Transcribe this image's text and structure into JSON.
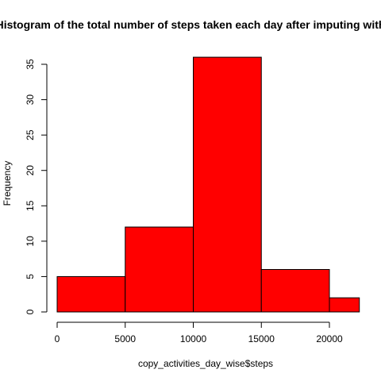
{
  "chart_data": {
    "type": "bar",
    "title": "Histogram of the total number of steps taken each day after imputing with",
    "xlabel": "copy_activities_day_wise$steps",
    "ylabel": "Frequency",
    "bins": [
      {
        "start": 0,
        "end": 5000,
        "count": 5
      },
      {
        "start": 5000,
        "end": 10000,
        "count": 12
      },
      {
        "start": 10000,
        "end": 15000,
        "count": 36
      },
      {
        "start": 15000,
        "end": 20000,
        "count": 6
      },
      {
        "start": 20000,
        "end": 22200,
        "count": 2
      }
    ],
    "xlim": [
      0,
      22200
    ],
    "ylim": [
      0,
      36
    ],
    "x_ticks": [
      "0",
      "5000",
      "10000",
      "15000",
      "20000"
    ],
    "y_ticks": [
      "0",
      "5",
      "10",
      "15",
      "20",
      "25",
      "30",
      "35"
    ],
    "bar_color": "#ff0000",
    "grid": false
  }
}
